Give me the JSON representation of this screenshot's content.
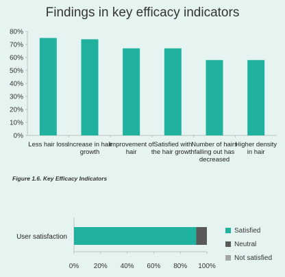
{
  "chart_data": [
    {
      "type": "bar",
      "title": "Findings in key efficacy indicators",
      "categories": [
        "Less hair loss",
        "Increase in hair growth",
        "Improvement of hair",
        "Satisfied with the hair growth",
        "Number of hairs falling out has decreased",
        "Higher density in hair"
      ],
      "category_lines": [
        [
          "Less hair loss"
        ],
        [
          "Increase in hair",
          "growth"
        ],
        [
          "Improvement of",
          "hair"
        ],
        [
          "Satisfied with",
          "the hair growth"
        ],
        [
          "Number of hairs",
          "falling out has",
          "decreased"
        ],
        [
          "Higher density",
          "in hair"
        ]
      ],
      "values": [
        75,
        74,
        67,
        67,
        58,
        58
      ],
      "unit": "%",
      "ylim": [
        0,
        80
      ],
      "yticks": [
        0,
        10,
        20,
        30,
        40,
        50,
        60,
        70,
        80
      ],
      "ytick_labels": [
        "0%",
        "10%",
        "20%",
        "30%",
        "40%",
        "50%",
        "60%",
        "70%",
        "80%"
      ],
      "grid": false,
      "color": "#20b29f"
    },
    {
      "type": "bar",
      "orientation": "horizontal",
      "stacked": true,
      "categories": [
        "User satisfaction"
      ],
      "series": [
        {
          "name": "Satisfied",
          "values": [
            92
          ],
          "color": "#20b29f"
        },
        {
          "name": "Neutral",
          "values": [
            8
          ],
          "color": "#595959"
        },
        {
          "name": "Not satisfied",
          "values": [
            0
          ],
          "color": "#a6a6a6"
        }
      ],
      "xlim": [
        0,
        100
      ],
      "xticks": [
        0,
        20,
        40,
        60,
        80,
        100
      ],
      "xtick_labels": [
        "0%",
        "20%",
        "40%",
        "60%",
        "80%",
        "100%"
      ],
      "legend": "right"
    }
  ],
  "caption": "Figure 1.6. Key Efficacy Indicators"
}
